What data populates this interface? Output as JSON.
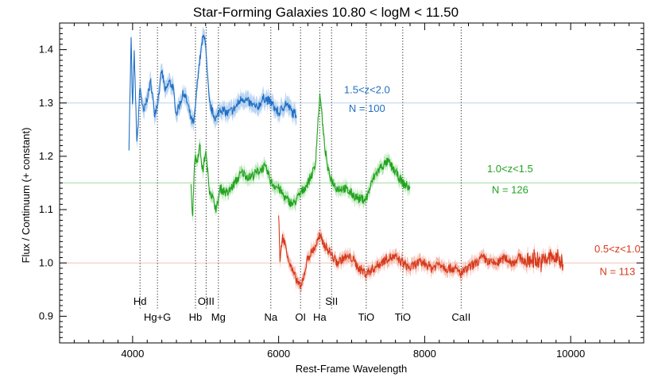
{
  "chart_data": {
    "type": "line",
    "title": "Star-Forming Galaxies   10.80 < logM < 11.50",
    "xlabel": "Rest-Frame Wavelength",
    "ylabel": "Flux / Continuum  (+ constant)",
    "xlim": [
      3000,
      11000
    ],
    "ylim": [
      0.85,
      1.45
    ],
    "x_ticks": [
      4000,
      6000,
      8000,
      10000
    ],
    "y_ticks": [
      0.9,
      1.0,
      1.1,
      1.2,
      1.3,
      1.4
    ],
    "grid": false,
    "colors": {
      "blue": "#1f6fc4",
      "green": "#22a31f",
      "red": "#d63a1c",
      "blue_band": "#a9c9ee",
      "green_band": "#a8e0a5",
      "red_band": "#f2a99a"
    },
    "series": [
      {
        "name": "1.5<z<2.0",
        "count_label": "N = 100",
        "color": "#1f6fc4",
        "baseline": 1.3,
        "x_range": [
          3950,
          6250
        ],
        "points": [
          [
            3950,
            1.22
          ],
          [
            3980,
            1.42
          ],
          [
            4000,
            1.28
          ],
          [
            4020,
            1.4
          ],
          [
            4060,
            1.22
          ],
          [
            4100,
            1.33
          ],
          [
            4150,
            1.28
          ],
          [
            4200,
            1.31
          ],
          [
            4250,
            1.34
          ],
          [
            4300,
            1.28
          ],
          [
            4340,
            1.3
          ],
          [
            4400,
            1.36
          ],
          [
            4450,
            1.32
          ],
          [
            4500,
            1.34
          ],
          [
            4550,
            1.33
          ],
          [
            4600,
            1.28
          ],
          [
            4650,
            1.3
          ],
          [
            4700,
            1.32
          ],
          [
            4750,
            1.3
          ],
          [
            4800,
            1.27
          ],
          [
            4840,
            1.26
          ],
          [
            4870,
            1.31
          ],
          [
            4900,
            1.36
          ],
          [
            4930,
            1.39
          ],
          [
            4960,
            1.42
          ],
          [
            4990,
            1.43
          ],
          [
            5010,
            1.38
          ],
          [
            5050,
            1.3
          ],
          [
            5100,
            1.28
          ],
          [
            5150,
            1.27
          ],
          [
            5200,
            1.29
          ],
          [
            5300,
            1.28
          ],
          [
            5400,
            1.29
          ],
          [
            5500,
            1.31
          ],
          [
            5600,
            1.3
          ],
          [
            5700,
            1.29
          ],
          [
            5800,
            1.31
          ],
          [
            5900,
            1.3
          ],
          [
            6000,
            1.28
          ],
          [
            6100,
            1.3
          ],
          [
            6200,
            1.28
          ],
          [
            6250,
            1.28
          ]
        ]
      },
      {
        "name": "1.0<z<1.5",
        "count_label": "N = 126",
        "color": "#22a31f",
        "baseline": 1.15,
        "x_range": [
          4800,
          7800
        ],
        "points": [
          [
            4800,
            1.15
          ],
          [
            4820,
            1.08
          ],
          [
            4850,
            1.2
          ],
          [
            4880,
            1.19
          ],
          [
            4920,
            1.22
          ],
          [
            4960,
            1.17
          ],
          [
            5000,
            1.21
          ],
          [
            5050,
            1.14
          ],
          [
            5100,
            1.12
          ],
          [
            5150,
            1.1
          ],
          [
            5200,
            1.14
          ],
          [
            5300,
            1.13
          ],
          [
            5400,
            1.15
          ],
          [
            5500,
            1.17
          ],
          [
            5600,
            1.16
          ],
          [
            5700,
            1.17
          ],
          [
            5800,
            1.18
          ],
          [
            5850,
            1.17
          ],
          [
            5900,
            1.15
          ],
          [
            6000,
            1.14
          ],
          [
            6100,
            1.12
          ],
          [
            6200,
            1.11
          ],
          [
            6300,
            1.13
          ],
          [
            6400,
            1.15
          ],
          [
            6500,
            1.18
          ],
          [
            6560,
            1.31
          ],
          [
            6580,
            1.3
          ],
          [
            6620,
            1.23
          ],
          [
            6680,
            1.17
          ],
          [
            6750,
            1.15
          ],
          [
            6800,
            1.14
          ],
          [
            6900,
            1.14
          ],
          [
            7000,
            1.13
          ],
          [
            7100,
            1.12
          ],
          [
            7200,
            1.12
          ],
          [
            7300,
            1.16
          ],
          [
            7400,
            1.18
          ],
          [
            7500,
            1.19
          ],
          [
            7600,
            1.17
          ],
          [
            7700,
            1.15
          ],
          [
            7800,
            1.14
          ]
        ]
      },
      {
        "name": "0.5<z<1.0",
        "count_label": "N = 113",
        "color": "#d63a1c",
        "baseline": 1.0,
        "x_range": [
          6000,
          9900
        ],
        "points": [
          [
            6000,
            1.09
          ],
          [
            6020,
            1.0
          ],
          [
            6050,
            1.05
          ],
          [
            6100,
            1.03
          ],
          [
            6150,
            1.0
          ],
          [
            6200,
            0.98
          ],
          [
            6280,
            0.96
          ],
          [
            6300,
            0.95
          ],
          [
            6350,
            0.98
          ],
          [
            6400,
            1.01
          ],
          [
            6450,
            1.02
          ],
          [
            6500,
            1.03
          ],
          [
            6560,
            1.05
          ],
          [
            6600,
            1.04
          ],
          [
            6650,
            1.03
          ],
          [
            6700,
            1.02
          ],
          [
            6800,
            1.0
          ],
          [
            6900,
            1.01
          ],
          [
            7000,
            1.01
          ],
          [
            7100,
            0.99
          ],
          [
            7200,
            0.98
          ],
          [
            7300,
            0.99
          ],
          [
            7400,
            1.0
          ],
          [
            7500,
            1.01
          ],
          [
            7600,
            1.01
          ],
          [
            7700,
            1.0
          ],
          [
            7800,
            0.99
          ],
          [
            7900,
            1.0
          ],
          [
            8000,
            1.0
          ],
          [
            8100,
            0.99
          ],
          [
            8200,
            1.0
          ],
          [
            8300,
            0.99
          ],
          [
            8400,
            0.99
          ],
          [
            8500,
            0.98
          ],
          [
            8600,
            0.99
          ],
          [
            8700,
            1.0
          ],
          [
            8800,
            1.01
          ],
          [
            8900,
            1.0
          ],
          [
            9000,
            1.0
          ],
          [
            9100,
            1.01
          ],
          [
            9200,
            1.0
          ],
          [
            9300,
            1.01
          ],
          [
            9400,
            1.0
          ],
          [
            9500,
            1.01
          ],
          [
            9600,
            1.0
          ],
          [
            9700,
            1.01
          ],
          [
            9800,
            1.01
          ],
          [
            9900,
            1.0
          ]
        ]
      }
    ],
    "lines": [
      {
        "name": "Hd",
        "wavelength": 4102,
        "label_row": "upper"
      },
      {
        "name": "Hg+G",
        "wavelength": 4340,
        "label_row": "lower"
      },
      {
        "name": "Hb",
        "wavelength": 4861,
        "label_row": "lower"
      },
      {
        "name": "OIII",
        "wavelength": 5007,
        "label_row": "upper"
      },
      {
        "name": "Mg",
        "wavelength": 5175,
        "label_row": "lower"
      },
      {
        "name": "Na",
        "wavelength": 5893,
        "label_row": "lower"
      },
      {
        "name": "OI",
        "wavelength": 6300,
        "label_row": "lower"
      },
      {
        "name": "Ha",
        "wavelength": 6563,
        "label_row": "lower"
      },
      {
        "name": "SII",
        "wavelength": 6725,
        "label_row": "upper"
      },
      {
        "name": "TiO",
        "wavelength": 7200,
        "label_row": "lower"
      },
      {
        "name": "TiO",
        "wavelength": 7700,
        "label_row": "lower"
      },
      {
        "name": "CaII",
        "wavelength": 8500,
        "label_row": "lower"
      }
    ]
  }
}
